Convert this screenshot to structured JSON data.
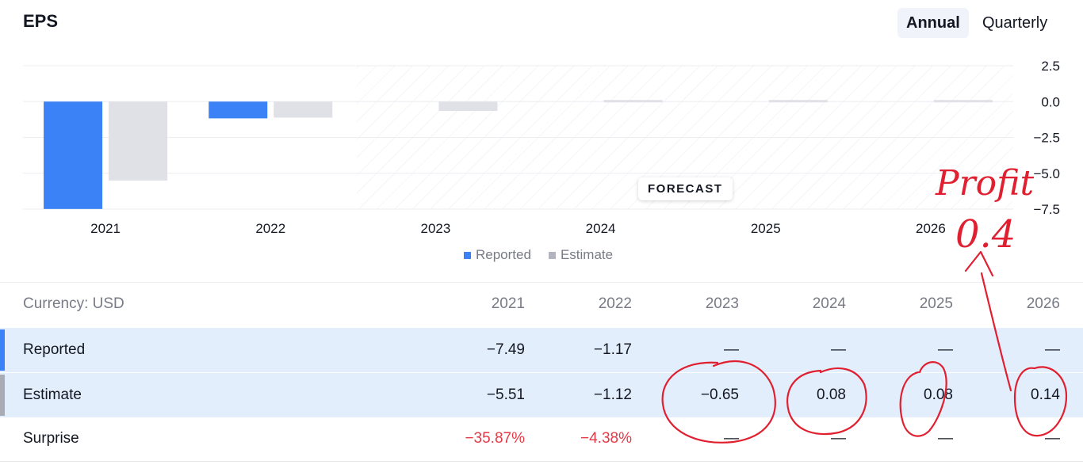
{
  "header": {
    "title": "EPS",
    "toggle_annual": "Annual",
    "toggle_quarterly": "Quarterly"
  },
  "colors": {
    "reported": "#3b82f6",
    "estimate": "#dfe1e7",
    "negative": "#e53945",
    "ink": "#e02030"
  },
  "chart_data": {
    "type": "bar",
    "categories": [
      "2021",
      "2022",
      "2023",
      "2024",
      "2025",
      "2026"
    ],
    "series": [
      {
        "name": "Reported",
        "values": [
          -7.49,
          -1.17,
          null,
          null,
          null,
          null
        ]
      },
      {
        "name": "Estimate",
        "values": [
          -5.51,
          -1.12,
          -0.65,
          0.08,
          0.08,
          0.14
        ]
      }
    ],
    "y_ticks": [
      "2.5",
      "0.0",
      "−2.5",
      "−5.0",
      "−7.5"
    ],
    "y_tick_values": [
      2.5,
      0,
      -2.5,
      -5,
      -7.5
    ],
    "ylim": [
      -7.5,
      2.5
    ],
    "forecast_label": "FORECAST",
    "forecast_from": "2023",
    "legend": [
      "Reported",
      "Estimate"
    ],
    "legend_position": "bottom"
  },
  "table": {
    "currency_label": "Currency: USD",
    "years": [
      "2021",
      "2022",
      "2023",
      "2024",
      "2025",
      "2026"
    ],
    "rows": [
      {
        "label": "Reported",
        "values": [
          "−7.49",
          "−1.17",
          "—",
          "—",
          "—",
          "—"
        ]
      },
      {
        "label": "Estimate",
        "values": [
          "−5.51",
          "−1.12",
          "−0.65",
          "0.08",
          "0.08",
          "0.14"
        ]
      },
      {
        "label": "Surprise",
        "values": [
          "−35.87%",
          "−4.38%",
          "—",
          "—",
          "—",
          "—"
        ]
      }
    ]
  },
  "annotation": {
    "line1": "Profit",
    "line2": "0.4"
  }
}
